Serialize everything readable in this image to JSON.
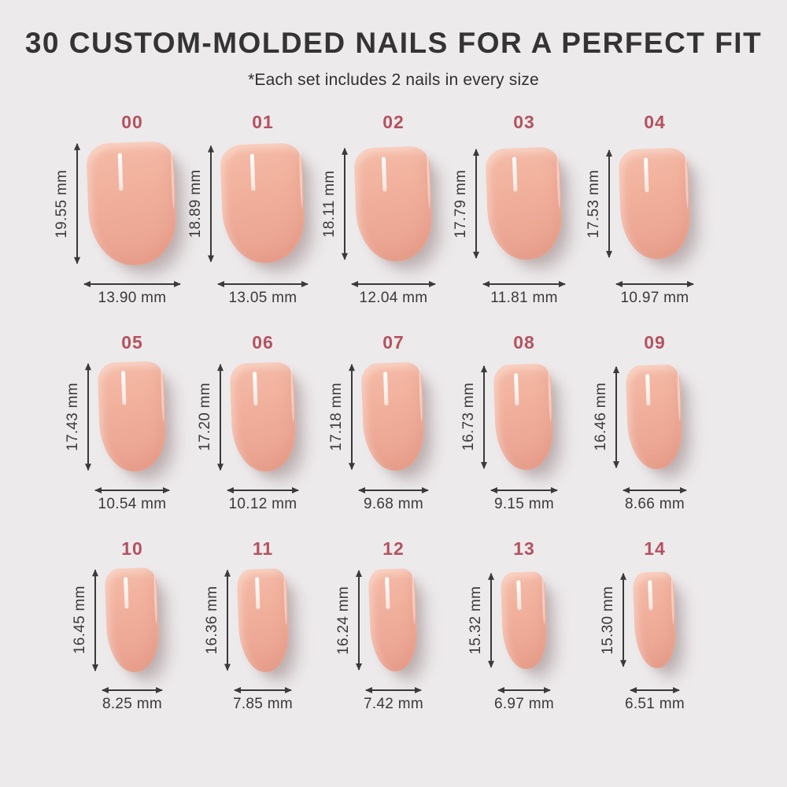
{
  "header": {
    "title": "30 CUSTOM-MOLDED NAILS FOR A PERFECT FIT",
    "subtitle": "*Each set includes 2 nails in every size"
  },
  "unit": "mm",
  "colors": {
    "background": "#edeaec",
    "accent_size_number": "#b4525f",
    "measure_text": "#3a3a3a",
    "nail_base": "#eeab97",
    "nail_light": "#f4bba7",
    "nail_dark": "#e9a08d"
  },
  "sizes": [
    {
      "id": "00",
      "height": "19.55 mm",
      "width": "13.90 mm"
    },
    {
      "id": "01",
      "height": "18.89 mm",
      "width": "13.05 mm"
    },
    {
      "id": "02",
      "height": "18.11 mm",
      "width": "12.04 mm"
    },
    {
      "id": "03",
      "height": "17.79 mm",
      "width": "11.81 mm"
    },
    {
      "id": "04",
      "height": "17.53 mm",
      "width": "10.97 mm"
    },
    {
      "id": "05",
      "height": "17.43 mm",
      "width": "10.54 mm"
    },
    {
      "id": "06",
      "height": "17.20 mm",
      "width": "10.12 mm"
    },
    {
      "id": "07",
      "height": "17.18 mm",
      "width": "9.68 mm"
    },
    {
      "id": "08",
      "height": "16.73 mm",
      "width": "9.15 mm"
    },
    {
      "id": "09",
      "height": "16.46 mm",
      "width": "8.66 mm"
    },
    {
      "id": "10",
      "height": "16.45 mm",
      "width": "8.25 mm"
    },
    {
      "id": "11",
      "height": "16.36 mm",
      "width": "7.85 mm"
    },
    {
      "id": "12",
      "height": "16.24 mm",
      "width": "7.42 mm"
    },
    {
      "id": "13",
      "height": "15.32 mm",
      "width": "6.97 mm"
    },
    {
      "id": "14",
      "height": "15.30 mm",
      "width": "6.51 mm"
    }
  ]
}
